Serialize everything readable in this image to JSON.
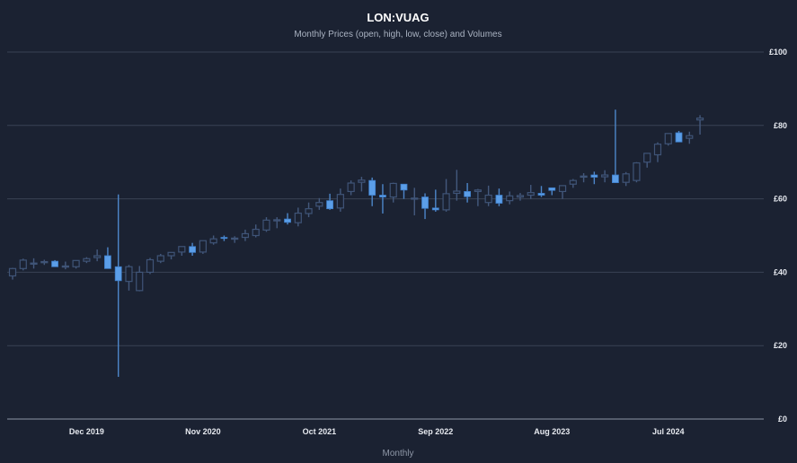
{
  "chart_data": {
    "type": "candlestick",
    "title": "LON:VUAG",
    "subtitle": "Monthly Prices (open, high, low, close) and Volumes",
    "xlabel": "Monthly",
    "ylabel": "",
    "ylim": [
      0,
      100
    ],
    "y_ticks": [
      0,
      20,
      40,
      60,
      80,
      100
    ],
    "y_tick_labels": [
      "£0",
      "£20",
      "£40",
      "£60",
      "£80",
      "£100"
    ],
    "x_ticks": [
      "Dec 2019",
      "Nov 2020",
      "Oct 2021",
      "Sep 2022",
      "Aug 2023",
      "Jul 2024"
    ],
    "grid": true,
    "colors": {
      "up": "#3f5477",
      "down": "#5b9ee8",
      "grid": "#3a4354",
      "axis": "#8e97a7",
      "background": "#1b2232"
    },
    "x": [
      "2019-05",
      "2019-06",
      "2019-07",
      "2019-08",
      "2019-09",
      "2019-10",
      "2019-11",
      "2019-12",
      "2020-01",
      "2020-02",
      "2020-03",
      "2020-04",
      "2020-05",
      "2020-06",
      "2020-07",
      "2020-08",
      "2020-09",
      "2020-10",
      "2020-11",
      "2020-12",
      "2021-01",
      "2021-02",
      "2021-03",
      "2021-04",
      "2021-05",
      "2021-06",
      "2021-07",
      "2021-08",
      "2021-09",
      "2021-10",
      "2021-11",
      "2021-12",
      "2022-01",
      "2022-02",
      "2022-03",
      "2022-04",
      "2022-05",
      "2022-06",
      "2022-07",
      "2022-08",
      "2022-09",
      "2022-10",
      "2022-11",
      "2022-12",
      "2023-01",
      "2023-02",
      "2023-03",
      "2023-04",
      "2023-05",
      "2023-06",
      "2023-07",
      "2023-08",
      "2023-09",
      "2023-10",
      "2023-11",
      "2023-12",
      "2024-01",
      "2024-02",
      "2024-03",
      "2024-04",
      "2024-05",
      "2024-06",
      "2024-07",
      "2024-08",
      "2024-09",
      "2024-10"
    ],
    "open": [
      39.0,
      41.0,
      42.5,
      42.8,
      43.0,
      41.6,
      41.5,
      43.0,
      44.0,
      44.5,
      41.5,
      37.5,
      35.0,
      40.0,
      43.0,
      44.5,
      45.5,
      47.0,
      45.5,
      48.0,
      49.5,
      49.3,
      49.5,
      50.0,
      51.5,
      54.0,
      54.5,
      53.5,
      56.0,
      58.0,
      59.5,
      57.5,
      62.0,
      64.5,
      65.0,
      61.0,
      60.5,
      64.0,
      60.0,
      60.5,
      57.5,
      57.0,
      61.5,
      62.0,
      62.0,
      59.0,
      61.0,
      59.5,
      60.5,
      61.0,
      61.5,
      63.0,
      62.0,
      64.0,
      66.0,
      66.5,
      66.0,
      66.5,
      64.5,
      65.0,
      70.0,
      72.0,
      75.0,
      78.0,
      76.5,
      81.5
    ],
    "high": [
      41.2,
      43.7,
      43.8,
      43.4,
      43.3,
      42.9,
      43.1,
      44.1,
      46.2,
      46.8,
      61.2,
      42.0,
      41.7,
      43.9,
      45.0,
      45.5,
      47.0,
      48.0,
      48.0,
      50.0,
      50.0,
      49.8,
      51.6,
      53.0,
      55.0,
      55.0,
      56.1,
      57.6,
      59.0,
      60.2,
      61.4,
      62.8,
      65.0,
      66.0,
      65.8,
      64.0,
      64.4,
      64.0,
      63.0,
      61.5,
      62.5,
      65.4,
      67.9,
      64.3,
      62.7,
      63.6,
      62.8,
      62.0,
      61.6,
      63.8,
      63.5,
      63.0,
      63.4,
      65.4,
      67.0,
      67.4,
      67.8,
      84.3,
      67.3,
      70.0,
      72.0,
      75.4,
      76.9,
      78.5,
      78.3,
      82.8
    ],
    "low": [
      38.0,
      40.5,
      41.0,
      42.0,
      42.0,
      40.8,
      41.0,
      42.5,
      43.0,
      41.0,
      11.5,
      35.0,
      34.8,
      39.5,
      42.5,
      43.5,
      44.5,
      44.5,
      45.0,
      47.5,
      48.5,
      48.0,
      48.5,
      49.5,
      51.0,
      52.0,
      53.0,
      52.5,
      55.0,
      57.0,
      57.0,
      56.5,
      61.0,
      62.0,
      58.0,
      56.0,
      59.0,
      60.0,
      55.5,
      54.5,
      56.5,
      56.5,
      59.5,
      59.0,
      58.0,
      58.0,
      58.0,
      58.5,
      59.5,
      60.0,
      60.5,
      61.0,
      60.0,
      63.0,
      64.5,
      64.0,
      64.5,
      64.5,
      63.5,
      64.5,
      68.5,
      70.0,
      74.5,
      75.5,
      75.0,
      77.5
    ],
    "close": [
      41.0,
      43.3,
      42.5,
      42.9,
      41.5,
      41.7,
      43.2,
      43.7,
      44.5,
      41.0,
      37.7,
      41.5,
      40.0,
      43.4,
      44.5,
      45.4,
      47.0,
      45.4,
      48.6,
      49.1,
      49.3,
      49.3,
      50.5,
      51.7,
      54.2,
      54.3,
      53.6,
      56.1,
      57.3,
      59.0,
      57.3,
      61.2,
      64.3,
      65.1,
      61.0,
      60.5,
      64.2,
      62.4,
      60.2,
      57.4,
      57.0,
      61.4,
      62.1,
      60.6,
      62.4,
      61.0,
      58.8,
      60.8,
      60.9,
      61.7,
      61.0,
      62.3,
      63.6,
      65.0,
      66.2,
      65.9,
      66.5,
      64.4,
      66.8,
      69.8,
      72.4,
      74.9,
      77.8,
      75.5,
      77.2,
      82.0
    ],
    "x_axis_title": "Monthly"
  },
  "labels": {
    "title": "LON:VUAG",
    "subtitle": "Monthly Prices (open, high, low, close) and Volumes",
    "xlabel": "Monthly"
  }
}
